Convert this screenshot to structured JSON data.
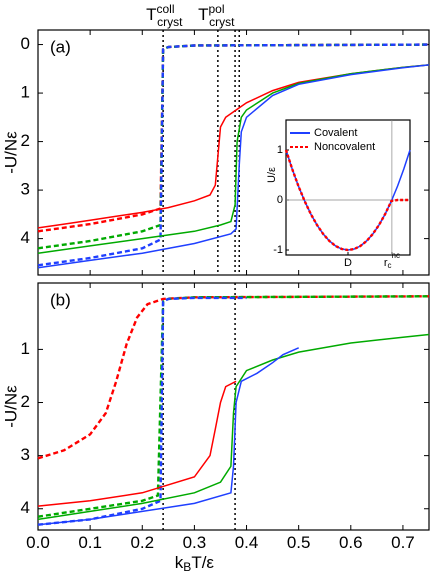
{
  "chart_data": [
    {
      "type": "line",
      "panel_label": "(a)",
      "y_label": "-U/Nε",
      "inverted": true,
      "ylim": [
        -0.3,
        4.75
      ],
      "yticks": [
        0,
        1,
        2,
        3,
        4
      ],
      "xlim": [
        0,
        0.75
      ],
      "xticks": [
        {
          "value": 0,
          "label": "0.0"
        },
        0.1,
        0.2,
        0.3,
        0.4,
        0.5,
        0.6,
        0.7
      ],
      "vlines": [
        0.24,
        0.345,
        0.378,
        0.386
      ],
      "annotations": [
        {
          "text": "T",
          "sup": "coll",
          "sub": "cryst"
        },
        {
          "text": "T",
          "sup": "pol",
          "sub": "cryst"
        }
      ],
      "series": [
        {
          "color": "#ff0000",
          "dash": "dashed",
          "x": [
            0,
            0.1,
            0.2,
            0.235,
            0.24,
            0.25,
            0.3,
            0.75
          ],
          "values": [
            3.85,
            3.7,
            3.5,
            3.38,
            0.1,
            0.05,
            0.02,
            0
          ]
        },
        {
          "color": "#00aa00",
          "dash": "dashed",
          "x": [
            0,
            0.1,
            0.2,
            0.235,
            0.24,
            0.25,
            0.3,
            0.75
          ],
          "values": [
            4.2,
            4.05,
            3.85,
            3.72,
            0.1,
            0.05,
            0.02,
            0
          ]
        },
        {
          "color": "#1f3fff",
          "dash": "dashed",
          "x": [
            0,
            0.1,
            0.2,
            0.235,
            0.24,
            0.25,
            0.3,
            0.75
          ],
          "values": [
            4.55,
            4.4,
            4.2,
            4.02,
            0.1,
            0.05,
            0.02,
            0
          ]
        },
        {
          "color": "#ff0000",
          "dash": "solid",
          "x": [
            0,
            0.05,
            0.1,
            0.15,
            0.2,
            0.25,
            0.3,
            0.33,
            0.34,
            0.345,
            0.35,
            0.36,
            0.38,
            0.4,
            0.45,
            0.5,
            0.6,
            0.7,
            0.75
          ],
          "values": [
            3.78,
            3.7,
            3.62,
            3.54,
            3.46,
            3.36,
            3.22,
            3.1,
            2.9,
            2.3,
            1.7,
            1.5,
            1.35,
            1.2,
            0.95,
            0.78,
            0.6,
            0.47,
            0.42
          ]
        },
        {
          "color": "#00aa00",
          "dash": "solid",
          "x": [
            0,
            0.1,
            0.2,
            0.3,
            0.35,
            0.37,
            0.378,
            0.382,
            0.39,
            0.4,
            0.45,
            0.5,
            0.6,
            0.7,
            0.75
          ],
          "values": [
            4.3,
            4.15,
            4.0,
            3.85,
            3.72,
            3.65,
            3.3,
            2.0,
            1.5,
            1.35,
            1.0,
            0.8,
            0.6,
            0.47,
            0.42
          ]
        },
        {
          "color": "#1f3fff",
          "dash": "solid",
          "x": [
            0,
            0.1,
            0.2,
            0.3,
            0.37,
            0.38,
            0.386,
            0.39,
            0.4,
            0.45,
            0.5,
            0.6,
            0.7,
            0.75
          ],
          "values": [
            4.6,
            4.45,
            4.3,
            4.1,
            3.9,
            3.8,
            2.5,
            1.8,
            1.5,
            1.05,
            0.82,
            0.62,
            0.48,
            0.42
          ]
        }
      ]
    },
    {
      "type": "line",
      "panel_label": "(b)",
      "y_label": "-U/Nε",
      "inverted": true,
      "x_label": [
        "k",
        "B",
        "T/ε"
      ],
      "ylim": [
        -0.25,
        4.4
      ],
      "yticks": [
        1,
        2,
        3,
        4
      ],
      "xlim": [
        0,
        0.75
      ],
      "xticks": [
        {
          "value": 0,
          "label": "0.0"
        },
        0.1,
        0.2,
        0.3,
        0.4,
        0.5,
        0.6,
        0.7
      ],
      "vlines": [
        0.24,
        0.378
      ],
      "series": [
        {
          "color": "#ff0000",
          "dash": "dashed",
          "x": [
            0,
            0.05,
            0.1,
            0.13,
            0.15,
            0.17,
            0.19,
            0.21,
            0.24,
            0.3,
            0.75
          ],
          "values": [
            3.05,
            2.9,
            2.6,
            2.2,
            1.6,
            0.9,
            0.4,
            0.15,
            0.05,
            0.02,
            0
          ]
        },
        {
          "color": "#00aa00",
          "dash": "dashed",
          "x": [
            0,
            0.1,
            0.2,
            0.23,
            0.24,
            0.25,
            0.3,
            0.75
          ],
          "values": [
            4.15,
            4.0,
            3.85,
            3.75,
            0.1,
            0.05,
            0.02,
            0
          ]
        },
        {
          "color": "#1f3fff",
          "dash": "dashed",
          "x": [
            0,
            0.1,
            0.2,
            0.235,
            0.24,
            0.25,
            0.3,
            0.4
          ],
          "values": [
            4.3,
            4.2,
            4.0,
            3.85,
            0.1,
            0.05,
            0.03,
            0.03
          ]
        },
        {
          "color": "#ff0000",
          "dash": "solid",
          "x": [
            0,
            0.1,
            0.2,
            0.3,
            0.33,
            0.34,
            0.35,
            0.36,
            0.38
          ],
          "values": [
            3.95,
            3.85,
            3.7,
            3.4,
            3.0,
            2.5,
            2.0,
            1.7,
            1.6
          ]
        },
        {
          "color": "#00aa00",
          "dash": "solid",
          "x": [
            0,
            0.1,
            0.2,
            0.3,
            0.35,
            0.37,
            0.375,
            0.38,
            0.4,
            0.45,
            0.5,
            0.6,
            0.7,
            0.75
          ],
          "values": [
            4.2,
            4.05,
            3.9,
            3.7,
            3.5,
            3.2,
            2.2,
            1.7,
            1.4,
            1.2,
            1.05,
            0.88,
            0.77,
            0.72
          ]
        },
        {
          "color": "#1f3fff",
          "dash": "solid",
          "x": [
            0,
            0.1,
            0.2,
            0.3,
            0.37,
            0.375,
            0.38,
            0.39,
            0.42,
            0.45,
            0.47,
            0.5
          ],
          "values": [
            4.3,
            4.2,
            4.05,
            3.9,
            3.7,
            3.2,
            2.0,
            1.6,
            1.45,
            1.25,
            1.1,
            0.97
          ]
        }
      ]
    },
    {
      "type": "line",
      "y_label": "U/ε",
      "zero_line": true,
      "ylim": [
        -1.1,
        1.6
      ],
      "yticks": [
        1,
        0,
        -1
      ],
      "xlim": [
        0,
        1
      ],
      "xticks": [
        {
          "value": 0.5,
          "label": "D"
        },
        {
          "value": 0.854,
          "label": "r",
          "sub": "c",
          "sup": "nc"
        }
      ],
      "series": [
        {
          "name": "Covalent",
          "color": "#1f3fff",
          "dash": "solid",
          "x": [
            0,
            0.05,
            0.1,
            0.15,
            0.2,
            0.25,
            0.3,
            0.35,
            0.4,
            0.45,
            0.5,
            0.55,
            0.6,
            0.65,
            0.7,
            0.75,
            0.8,
            0.85,
            0.9,
            0.95,
            1
          ],
          "values": [
            1,
            0.62,
            0.28,
            -0.02,
            -0.28,
            -0.5,
            -0.68,
            -0.82,
            -0.92,
            -0.98,
            -1,
            -0.98,
            -0.92,
            -0.82,
            -0.68,
            -0.5,
            -0.28,
            -0.02,
            0.28,
            0.62,
            1
          ]
        },
        {
          "name": "Noncovalent",
          "color": "#ff0000",
          "dash": "dotted",
          "x": [
            0,
            0.05,
            0.1,
            0.15,
            0.2,
            0.25,
            0.3,
            0.35,
            0.4,
            0.45,
            0.5,
            0.55,
            0.6,
            0.65,
            0.7,
            0.75,
            0.8,
            0.85,
            0.9,
            0.95,
            1
          ],
          "values": [
            1,
            0.62,
            0.28,
            -0.02,
            -0.28,
            -0.5,
            -0.68,
            -0.82,
            -0.92,
            -0.98,
            -1,
            -0.98,
            -0.92,
            -0.82,
            -0.68,
            -0.5,
            -0.28,
            -0.02,
            0,
            0,
            0
          ]
        }
      ]
    }
  ]
}
